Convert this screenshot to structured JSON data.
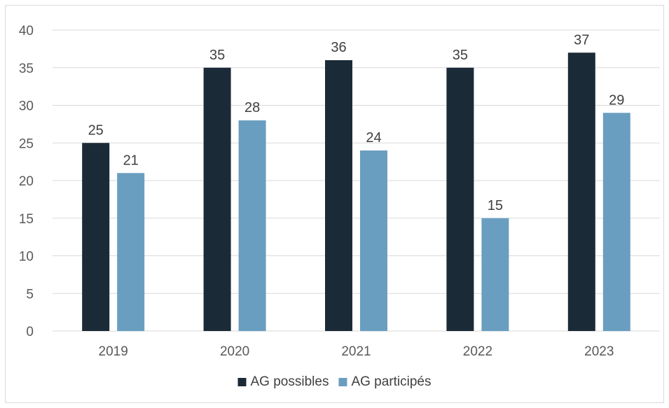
{
  "chart_data": {
    "type": "bar",
    "categories": [
      "2019",
      "2020",
      "2021",
      "2022",
      "2023"
    ],
    "series": [
      {
        "name": "AG possibles",
        "values": [
          25,
          35,
          36,
          35,
          37
        ],
        "color": "#1b2a37"
      },
      {
        "name": "AG participés",
        "values": [
          21,
          28,
          24,
          15,
          29
        ],
        "color": "#6a9ec0"
      }
    ],
    "ylim": [
      0,
      40
    ],
    "yticks": [
      0,
      5,
      10,
      15,
      20,
      25,
      30,
      35,
      40
    ],
    "grid": true,
    "data_labels": true,
    "legend": "bottom",
    "title": "",
    "xlabel": "",
    "ylabel": ""
  }
}
